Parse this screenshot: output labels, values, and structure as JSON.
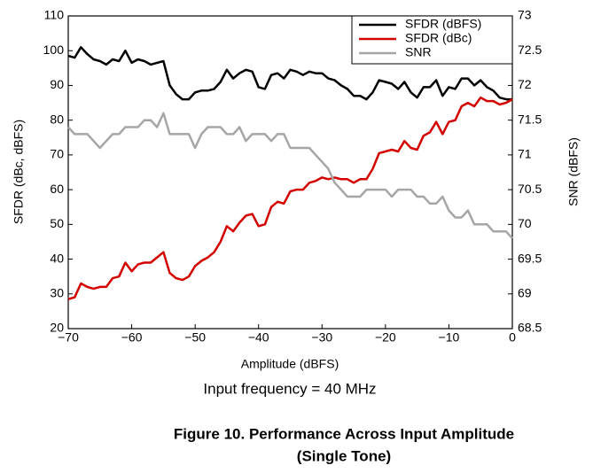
{
  "chart_data": {
    "type": "line",
    "xlabel": "Amplitude (dBFS)",
    "ylabel": "SFDR (dBc, dBFS)",
    "y2label": "SNR (dBFS)",
    "subtitle": "Input frequency = 40 MHz",
    "caption": [
      "Figure 10. Performance Across Input Amplitude",
      "(Single Tone)"
    ],
    "legend": "upper right",
    "x": [
      -70,
      -69,
      -68,
      -67,
      -66,
      -65,
      -64,
      -63,
      -62,
      -61,
      -60,
      -59,
      -58,
      -57,
      -56,
      -55,
      -54,
      -53,
      -52,
      -51,
      -50,
      -49,
      -48,
      -47,
      -46,
      -45,
      -44,
      -43,
      -42,
      -41,
      -40,
      -39,
      -38,
      -37,
      -36,
      -35,
      -34,
      -33,
      -32,
      -31,
      -30,
      -29,
      -28,
      -27,
      -26,
      -25,
      -24,
      -23,
      -22,
      -21,
      -20,
      -19,
      -18,
      -17,
      -16,
      -15,
      -14,
      -13,
      -12,
      -11,
      -10,
      -9,
      -8,
      -7,
      -6,
      -5,
      -4,
      -3,
      -2,
      -1,
      0
    ],
    "series": [
      {
        "name": "SFDR (dBFS)",
        "color": "#000000",
        "values": [
          98.5,
          98,
          101,
          99,
          97.5,
          97,
          96,
          97.5,
          97,
          100,
          96.5,
          97.5,
          97,
          96,
          96.5,
          97,
          90,
          87.5,
          86,
          86,
          88,
          88.5,
          88.5,
          89,
          91,
          94.5,
          92,
          93.5,
          94.5,
          94,
          89.5,
          89,
          93,
          93.5,
          92,
          94.5,
          94,
          93,
          94,
          93.5,
          93.5,
          92,
          91.5,
          90,
          89,
          87,
          87,
          86,
          88,
          91.5,
          91,
          90.5,
          89,
          91,
          88,
          86.5,
          89.5,
          89.5,
          91.5,
          87,
          89.5,
          89,
          92,
          92,
          90,
          91.5,
          89.5,
          88.5,
          86.5,
          86,
          86
        ]
      },
      {
        "name": "SFDR (dBc)",
        "color": "#d40000",
        "values": [
          28.5,
          29,
          33,
          32,
          31.5,
          32,
          32,
          34.5,
          35,
          39,
          36.5,
          38.5,
          39,
          39,
          40.5,
          42,
          36,
          34.5,
          34,
          35,
          38,
          39.5,
          40.5,
          42,
          45,
          49.5,
          48,
          50.5,
          52.5,
          53,
          49.5,
          50,
          55,
          56.5,
          56,
          59.5,
          60,
          60,
          62,
          62.5,
          63.5,
          63,
          63.5,
          63,
          63,
          62,
          63,
          63,
          66,
          70.5,
          71,
          71.5,
          71,
          74,
          72,
          71.5,
          75.5,
          76.5,
          79.5,
          76,
          79.5,
          80,
          84,
          85,
          84,
          86.5,
          85.5,
          85.5,
          84.5,
          85,
          86
        ]
      },
      {
        "name": "SNR",
        "color": "#a6a6a6",
        "axis": "y2",
        "values": [
          71.4,
          71.3,
          71.3,
          71.3,
          71.2,
          71.1,
          71.2,
          71.3,
          71.3,
          71.4,
          71.4,
          71.4,
          71.5,
          71.5,
          71.4,
          71.6,
          71.3,
          71.3,
          71.3,
          71.3,
          71.1,
          71.3,
          71.4,
          71.4,
          71.4,
          71.3,
          71.3,
          71.4,
          71.2,
          71.3,
          71.3,
          71.3,
          71.2,
          71.3,
          71.3,
          71.1,
          71.1,
          71.1,
          71.1,
          71.0,
          70.9,
          70.8,
          70.6,
          70.5,
          70.4,
          70.4,
          70.4,
          70.5,
          70.5,
          70.5,
          70.5,
          70.4,
          70.5,
          70.5,
          70.5,
          70.4,
          70.4,
          70.3,
          70.3,
          70.4,
          70.2,
          70.1,
          70.1,
          70.2,
          70.0,
          70.0,
          70.0,
          69.9,
          69.9,
          69.9,
          69.8
        ]
      }
    ],
    "xlim": [
      -70,
      0
    ],
    "xticks": [
      {
        "value": -70,
        "label": "−70"
      },
      {
        "value": -60,
        "label": "−60"
      },
      {
        "value": -50,
        "label": "−50"
      },
      {
        "value": -40,
        "label": "−40"
      },
      {
        "value": -30,
        "label": "−30"
      },
      {
        "value": -20,
        "label": "−20"
      },
      {
        "value": -10,
        "label": "−10"
      },
      0
    ],
    "ylim": [
      20,
      110
    ],
    "yticks": [
      20,
      30,
      40,
      50,
      60,
      70,
      80,
      90,
      100,
      110
    ],
    "y2lim": [
      68.5,
      73
    ],
    "y2ticks": [
      68.5,
      69,
      69.5,
      70,
      70.5,
      71,
      71.5,
      72,
      72.5,
      73
    ]
  }
}
